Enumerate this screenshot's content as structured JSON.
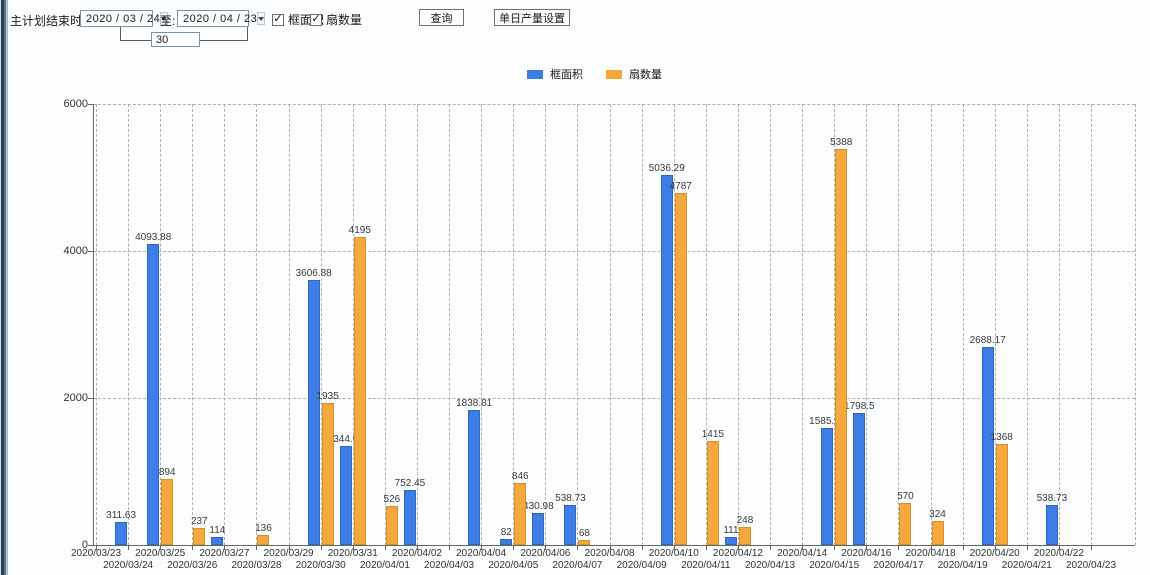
{
  "toolbar": {
    "plan_end_label": "主计划结束时间:",
    "date_from": "2020 / 03 / 24",
    "to_label": "至:",
    "date_to": "2020 / 04 / 23",
    "interval_days": "30",
    "series_checkboxes": [
      {
        "label": "框面积",
        "checked": true
      },
      {
        "label": "扇数量",
        "checked": true
      }
    ],
    "query_button": "查询",
    "daily_output_button": "单日产量设置"
  },
  "legend": {
    "items": [
      {
        "label": "框面积",
        "color": "#3D7DE4"
      },
      {
        "label": "扇数量",
        "color": "#F5A93D"
      }
    ]
  },
  "chart_data": {
    "type": "bar",
    "title": "",
    "xlabel": "",
    "ylabel": "",
    "ylim": [
      0,
      6000
    ],
    "yticks": [
      0,
      2000,
      4000,
      6000
    ],
    "grid": "dashed",
    "legend_position": "top-center",
    "categories": [
      "2020/03/23",
      "2020/03/24",
      "2020/03/25",
      "2020/03/26",
      "2020/03/27",
      "2020/03/28",
      "2020/03/29",
      "2020/03/30",
      "2020/03/31",
      "2020/04/01",
      "2020/04/02",
      "2020/04/03",
      "2020/04/04",
      "2020/04/05",
      "2020/04/06",
      "2020/04/07",
      "2020/04/08",
      "2020/04/09",
      "2020/04/10",
      "2020/04/11",
      "2020/04/12",
      "2020/04/13",
      "2020/04/14",
      "2020/04/15",
      "2020/04/16",
      "2020/04/17",
      "2020/04/18",
      "2020/04/19",
      "2020/04/20",
      "2020/04/21",
      "2020/04/22",
      "2020/04/23"
    ],
    "series": [
      {
        "name": "框面积",
        "key": "frame-area",
        "color": "#3D7DE4",
        "border_color": "#2F64C8",
        "values": [
          null,
          311.63,
          4093.88,
          null,
          114,
          null,
          null,
          3606.88,
          1344.95,
          null,
          752.45,
          null,
          1838.81,
          82,
          430.98,
          538.73,
          null,
          null,
          5036.29,
          null,
          111,
          null,
          null,
          1585.96,
          1798.5,
          null,
          null,
          null,
          2688.17,
          null,
          538.73,
          null
        ]
      },
      {
        "name": "扇数量",
        "key": "sash-count",
        "color": "#F5A93D",
        "border_color": "#D8912A",
        "values": [
          null,
          null,
          894,
          237,
          null,
          136,
          null,
          1935,
          4195,
          526,
          null,
          null,
          null,
          846,
          null,
          68,
          null,
          null,
          4787,
          1415,
          248,
          null,
          null,
          5388,
          null,
          570,
          324,
          null,
          1368,
          null,
          null,
          null
        ]
      }
    ]
  }
}
